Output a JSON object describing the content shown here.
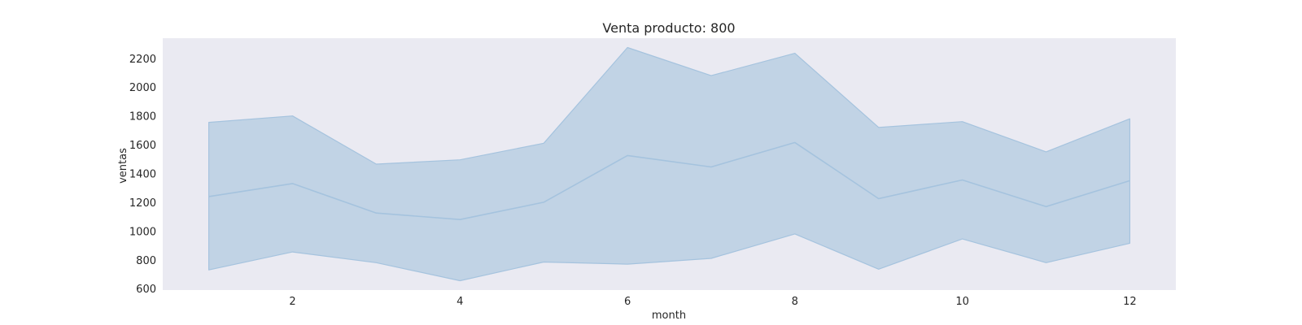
{
  "chart_data": {
    "type": "area",
    "title": "Venta producto: 800",
    "xlabel": "month",
    "ylabel": "ventas",
    "xlim": [
      0.45,
      12.55
    ],
    "ylim": [
      590,
      2340
    ],
    "grid": false,
    "x": [
      1,
      2,
      3,
      4,
      5,
      6,
      7,
      8,
      9,
      10,
      11,
      12
    ],
    "x_ticks": [
      2,
      4,
      6,
      8,
      10,
      12
    ],
    "y_ticks": [
      600,
      800,
      1000,
      1200,
      1400,
      1600,
      1800,
      2000,
      2200
    ],
    "series": [
      {
        "mean": [
          1240,
          1330,
          1125,
          1080,
          1200,
          1525,
          1445,
          1615,
          1225,
          1355,
          1170,
          1350
        ],
        "lower": [
          730,
          855,
          780,
          655,
          785,
          770,
          810,
          980,
          735,
          945,
          780,
          915
        ],
        "upper": [
          1755,
          1800,
          1465,
          1495,
          1610,
          2275,
          2080,
          2235,
          1720,
          1760,
          1550,
          1780
        ]
      }
    ],
    "colors": {
      "plot_background": "#eaeaf2",
      "band_fill": "#c1d3e5",
      "line": "#a5c3de"
    }
  }
}
